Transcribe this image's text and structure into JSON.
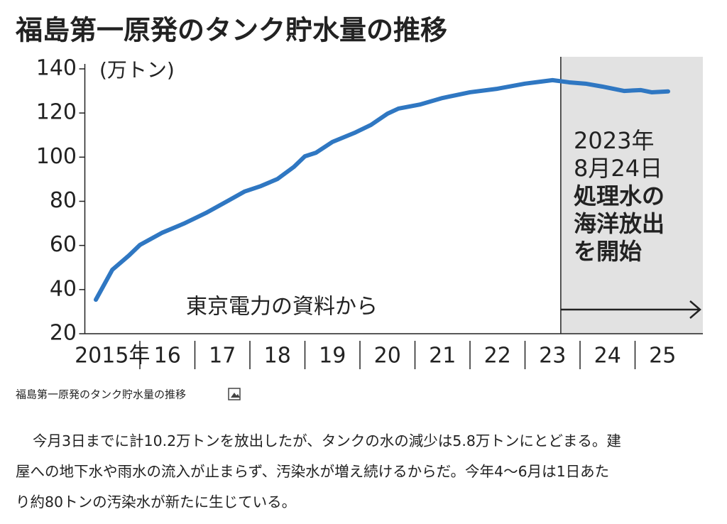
{
  "chart_data": {
    "type": "line",
    "title": "福島第一原発のタンク貯水量の推移",
    "y_label": "(万トン)",
    "source": "東京電力の資料から",
    "annotation": [
      "2023年",
      "8月24日",
      "処理水の",
      "海洋放出",
      "を開始"
    ],
    "shade_from": 2023.65,
    "x": [
      2015.2,
      2015.5,
      2015.8,
      2016.0,
      2016.4,
      2016.8,
      2017.2,
      2017.6,
      2017.9,
      2018.2,
      2018.5,
      2018.8,
      2019.0,
      2019.2,
      2019.5,
      2019.9,
      2020.2,
      2020.5,
      2020.7,
      2021.1,
      2021.5,
      2022.0,
      2022.5,
      2023.0,
      2023.5,
      2023.8,
      2024.1,
      2024.4,
      2024.8,
      2025.1,
      2025.3,
      2025.6
    ],
    "series": [
      {
        "name": "タンク貯水量",
        "color": "#2f77c2",
        "values": [
          35.4,
          49,
          55.4,
          60.2,
          65.7,
          69.9,
          74.7,
          80.2,
          84.4,
          86.9,
          90.1,
          95.6,
          100.4,
          102,
          106.9,
          111,
          114.6,
          119.7,
          122,
          123.9,
          126.8,
          129.4,
          131,
          133.3,
          134.9,
          133.9,
          133.3,
          132,
          130,
          130.4,
          129.4,
          129.8
        ]
      }
    ],
    "xlim": [
      2015,
      2026.2
    ],
    "xticks": [
      {
        "value": 2015.5,
        "label": "2015年"
      },
      {
        "value": 2016.5,
        "label": "16"
      },
      {
        "value": 2017.5,
        "label": "17"
      },
      {
        "value": 2018.5,
        "label": "18"
      },
      {
        "value": 2019.5,
        "label": "19"
      },
      {
        "value": 2020.5,
        "label": "20"
      },
      {
        "value": 2021.5,
        "label": "21"
      },
      {
        "value": 2022.5,
        "label": "22"
      },
      {
        "value": 2023.5,
        "label": "23"
      },
      {
        "value": 2024.5,
        "label": "24"
      },
      {
        "value": 2025.5,
        "label": "25"
      }
    ],
    "year_boundaries": [
      2016,
      2017,
      2018,
      2019,
      2020,
      2021,
      2022,
      2023,
      2024,
      2025
    ],
    "ylim": [
      20,
      140
    ],
    "yticks": [
      20,
      40,
      60,
      80,
      100,
      120,
      140
    ]
  },
  "caption": "福島第一原発のタンク貯水量の推移",
  "article": [
    "今月3日までに計10.2万トンを放出したが、タンクの水の減少は5.8万トンにとどまる。建",
    "屋への地下水や雨水の流入が止まらず、汚染水が増え続けるからだ。今年4〜6月は1日あた",
    "り約80トンの汚染水が新たに生じている。"
  ]
}
